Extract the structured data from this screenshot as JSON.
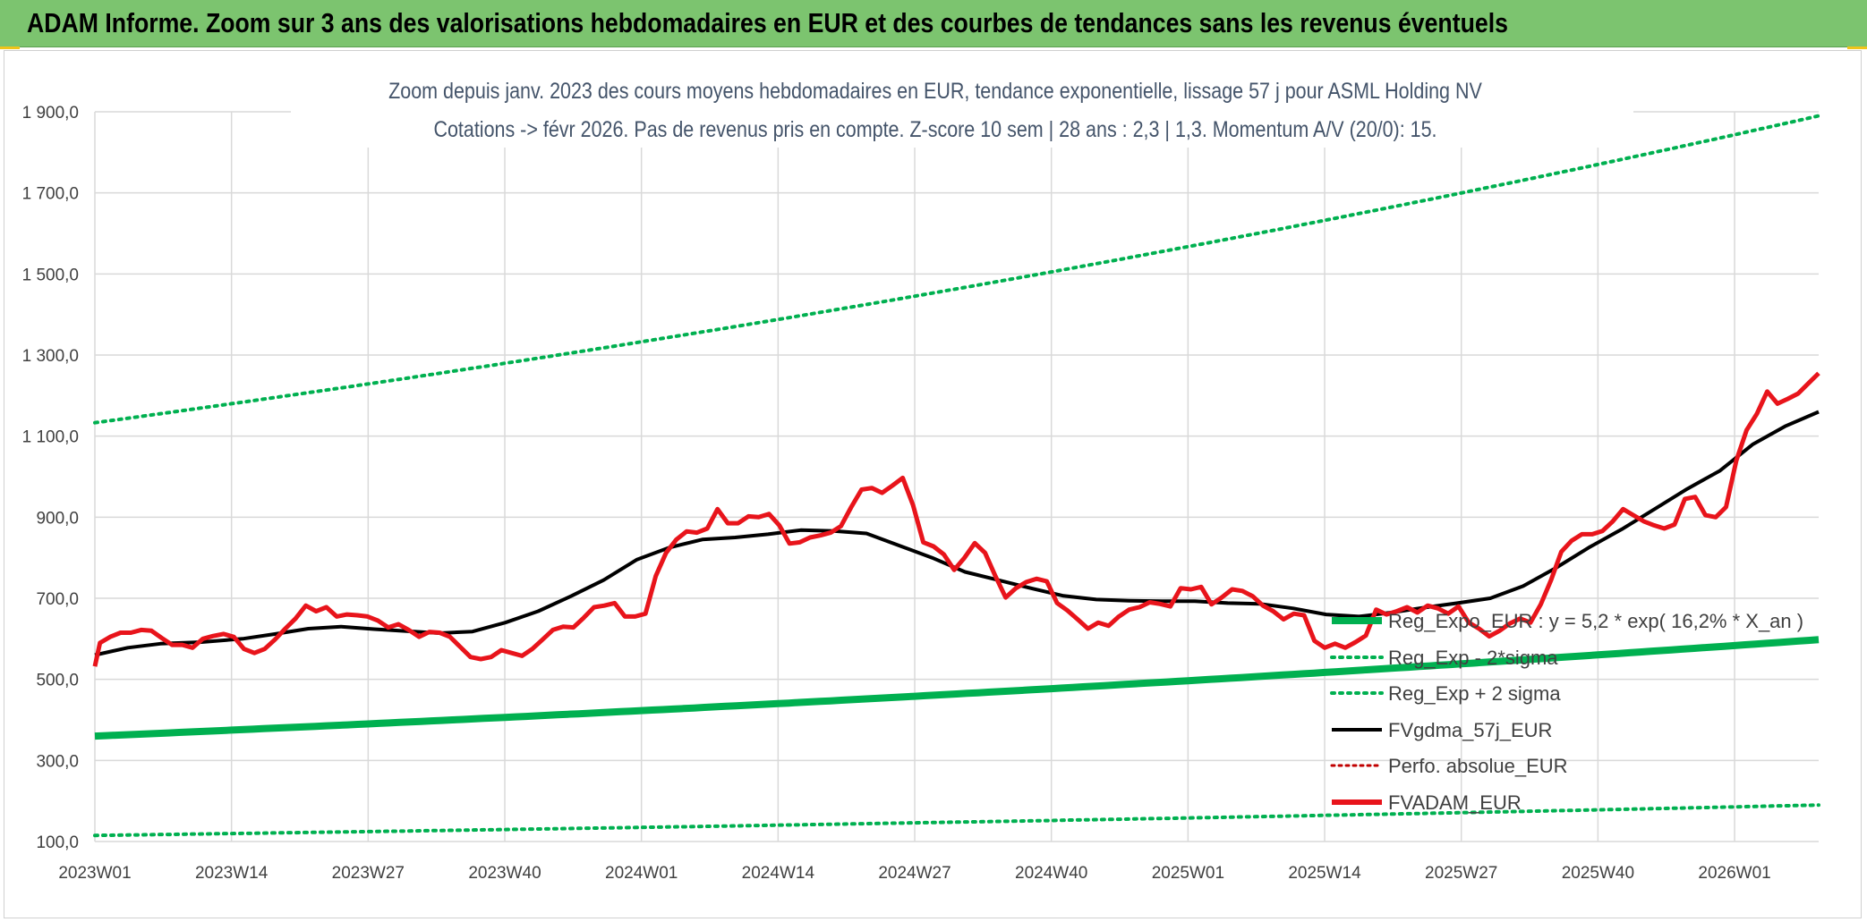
{
  "header": {
    "title": "ADAM Informe. Zoom sur 3 ans des valorisations hebdomadaires en EUR et des courbes de tendances sans les revenus éventuels"
  },
  "colors": {
    "header_bg": "#7cc46f",
    "trend": "#00b050",
    "price": "#e8141b",
    "smooth": "#000000",
    "perf": "#c00000",
    "grid": "#d9d9d9"
  },
  "chart_data": {
    "type": "line",
    "title": "Zoom depuis janv. 2023 des cours moyens hebdomadaires en EUR, tendance exponentielle, lissage 57 j pour ASML Holding NV",
    "subtitle": "Cotations -> févr 2026. Pas de revenus pris en compte. Z-score 10 sem | 28 ans : 2,3 | 1,3. Momentum A/V (20/0): 15.",
    "xlabel": "",
    "ylabel": "",
    "ylim": [
      100,
      1900
    ],
    "yticks": [
      "100,0",
      "300,0",
      "500,0",
      "700,0",
      "900,0",
      "1 100,0",
      "1 300,0",
      "1 500,0",
      "1 700,0",
      "1 900,0"
    ],
    "ytick_values": [
      100,
      300,
      500,
      700,
      900,
      1100,
      1300,
      1500,
      1700,
      1900
    ],
    "xticks": [
      "2023W01",
      "2023W14",
      "2023W27",
      "2023W40",
      "2024W01",
      "2024W14",
      "2024W27",
      "2024W40",
      "2025W01",
      "2025W14",
      "2025W27",
      "2025W40",
      "2026W01"
    ],
    "xtick_index": [
      0,
      13,
      26,
      39,
      52,
      65,
      78,
      91,
      104,
      117,
      130,
      143,
      156
    ],
    "x_count": 165,
    "grid": true,
    "legend_position": "bottom-right",
    "series": [
      {
        "name": "Reg_Expo_EUR : y = 5,2 * exp( 16,2% *  X_an )",
        "style": "thick-solid",
        "color": "#00b050",
        "start": 360,
        "end": 598
      },
      {
        "name": "Reg_Exp - 2*sigma",
        "style": "dotted",
        "color": "#00b050",
        "start": 115,
        "end": 190
      },
      {
        "name": "Reg_Exp + 2 sigma",
        "style": "dotted",
        "color": "#00b050",
        "start": 1133,
        "end": 1890
      },
      {
        "name": "FVgdma_57j_EUR",
        "style": "solid",
        "color": "#000000",
        "points": [
          [
            0,
            560
          ],
          [
            4,
            578
          ],
          [
            8,
            588
          ],
          [
            13,
            592
          ],
          [
            18,
            600
          ],
          [
            22,
            612
          ],
          [
            26,
            625
          ],
          [
            30,
            630
          ],
          [
            34,
            624
          ],
          [
            38,
            619
          ],
          [
            42,
            614
          ],
          [
            46,
            618
          ],
          [
            50,
            640
          ],
          [
            54,
            668
          ],
          [
            58,
            705
          ],
          [
            62,
            745
          ],
          [
            66,
            795
          ],
          [
            70,
            825
          ],
          [
            74,
            845
          ],
          [
            78,
            850
          ],
          [
            82,
            858
          ],
          [
            86,
            868
          ],
          [
            90,
            866
          ],
          [
            94,
            860
          ],
          [
            98,
            830
          ],
          [
            102,
            800
          ],
          [
            106,
            765
          ],
          [
            110,
            745
          ],
          [
            114,
            725
          ],
          [
            118,
            706
          ],
          [
            122,
            697
          ],
          [
            126,
            694
          ],
          [
            130,
            693
          ],
          [
            134,
            693
          ],
          [
            138,
            688
          ],
          [
            142,
            686
          ],
          [
            146,
            675
          ],
          [
            150,
            660
          ],
          [
            154,
            655
          ],
          [
            158,
            665
          ],
          [
            162,
            677
          ],
          [
            166,
            688
          ],
          [
            170,
            700
          ],
          [
            174,
            730
          ],
          [
            178,
            775
          ],
          [
            182,
            825
          ],
          [
            186,
            870
          ],
          [
            190,
            920
          ],
          [
            194,
            970
          ],
          [
            198,
            1015
          ],
          [
            202,
            1080
          ],
          [
            206,
            1125
          ],
          [
            210,
            1160
          ]
        ]
      },
      {
        "name": "Perfo. absolue_EUR",
        "style": "dotted",
        "color": "#c00000"
      },
      {
        "name": "FVADAM_EUR",
        "style": "thick-solid",
        "color": "#e8141b",
        "points": [
          [
            0,
            532
          ],
          [
            1,
            590
          ],
          [
            3,
            605
          ],
          [
            5,
            615
          ],
          [
            7,
            615
          ],
          [
            9,
            622
          ],
          [
            11,
            620
          ],
          [
            13,
            602
          ],
          [
            15,
            585
          ],
          [
            17,
            585
          ],
          [
            19,
            578
          ],
          [
            21,
            600
          ],
          [
            23,
            607
          ],
          [
            25,
            612
          ],
          [
            27,
            605
          ],
          [
            29,
            575
          ],
          [
            31,
            565
          ],
          [
            33,
            575
          ],
          [
            35,
            598
          ],
          [
            37,
            625
          ],
          [
            39,
            650
          ],
          [
            41,
            682
          ],
          [
            43,
            668
          ],
          [
            45,
            678
          ],
          [
            47,
            655
          ],
          [
            49,
            660
          ],
          [
            51,
            658
          ],
          [
            53,
            655
          ],
          [
            55,
            645
          ],
          [
            57,
            628
          ],
          [
            59,
            636
          ],
          [
            61,
            622
          ],
          [
            63,
            605
          ],
          [
            65,
            617
          ],
          [
            67,
            615
          ],
          [
            69,
            605
          ],
          [
            71,
            580
          ],
          [
            73,
            555
          ],
          [
            75,
            550
          ],
          [
            77,
            555
          ],
          [
            79,
            572
          ],
          [
            81,
            565
          ],
          [
            83,
            558
          ],
          [
            85,
            575
          ],
          [
            87,
            598
          ],
          [
            89,
            622
          ],
          [
            91,
            630
          ],
          [
            93,
            628
          ],
          [
            95,
            652
          ],
          [
            97,
            678
          ],
          [
            99,
            682
          ],
          [
            101,
            688
          ],
          [
            103,
            655
          ],
          [
            105,
            655
          ],
          [
            107,
            662
          ],
          [
            109,
            755
          ],
          [
            111,
            812
          ],
          [
            113,
            845
          ],
          [
            115,
            865
          ],
          [
            117,
            862
          ],
          [
            119,
            872
          ],
          [
            121,
            920
          ],
          [
            123,
            885
          ],
          [
            125,
            885
          ],
          [
            127,
            902
          ],
          [
            129,
            900
          ],
          [
            131,
            908
          ],
          [
            133,
            880
          ],
          [
            135,
            835
          ],
          [
            137,
            838
          ],
          [
            139,
            850
          ],
          [
            141,
            855
          ],
          [
            143,
            862
          ],
          [
            145,
            878
          ],
          [
            147,
            925
          ],
          [
            149,
            968
          ],
          [
            151,
            972
          ],
          [
            153,
            960
          ],
          [
            155,
            978
          ],
          [
            157,
            997
          ],
          [
            159,
            930
          ],
          [
            161,
            838
          ],
          [
            163,
            828
          ],
          [
            165,
            808
          ],
          [
            167,
            770
          ],
          [
            169,
            800
          ],
          [
            171,
            836
          ],
          [
            173,
            812
          ],
          [
            175,
            755
          ],
          [
            177,
            702
          ],
          [
            179,
            725
          ],
          [
            181,
            740
          ],
          [
            183,
            748
          ],
          [
            185,
            742
          ],
          [
            187,
            688
          ],
          [
            189,
            670
          ],
          [
            191,
            648
          ],
          [
            193,
            625
          ],
          [
            195,
            640
          ],
          [
            197,
            632
          ],
          [
            199,
            655
          ],
          [
            201,
            672
          ],
          [
            203,
            678
          ],
          [
            205,
            690
          ],
          [
            207,
            686
          ],
          [
            209,
            680
          ],
          [
            211,
            725
          ],
          [
            213,
            722
          ],
          [
            215,
            728
          ],
          [
            217,
            685
          ],
          [
            219,
            702
          ],
          [
            221,
            722
          ],
          [
            223,
            718
          ],
          [
            225,
            705
          ],
          [
            227,
            682
          ],
          [
            229,
            668
          ],
          [
            231,
            648
          ],
          [
            233,
            662
          ],
          [
            235,
            658
          ],
          [
            237,
            595
          ],
          [
            239,
            578
          ],
          [
            241,
            588
          ],
          [
            243,
            578
          ],
          [
            245,
            592
          ],
          [
            247,
            608
          ],
          [
            249,
            672
          ],
          [
            251,
            660
          ],
          [
            253,
            668
          ],
          [
            255,
            678
          ],
          [
            257,
            665
          ],
          [
            259,
            682
          ],
          [
            261,
            675
          ],
          [
            263,
            662
          ],
          [
            265,
            680
          ],
          [
            267,
            640
          ],
          [
            269,
            625
          ],
          [
            271,
            606
          ],
          [
            273,
            620
          ],
          [
            275,
            638
          ],
          [
            277,
            650
          ],
          [
            279,
            640
          ],
          [
            281,
            685
          ],
          [
            283,
            745
          ],
          [
            285,
            815
          ],
          [
            287,
            842
          ],
          [
            289,
            858
          ],
          [
            291,
            858
          ],
          [
            293,
            866
          ],
          [
            295,
            890
          ],
          [
            297,
            920
          ],
          [
            299,
            905
          ],
          [
            301,
            890
          ],
          [
            303,
            880
          ],
          [
            305,
            872
          ],
          [
            307,
            882
          ],
          [
            309,
            945
          ],
          [
            311,
            950
          ],
          [
            313,
            905
          ],
          [
            315,
            900
          ],
          [
            317,
            925
          ],
          [
            319,
            1040
          ],
          [
            321,
            1115
          ],
          [
            323,
            1155
          ],
          [
            325,
            1210
          ],
          [
            327,
            1180
          ],
          [
            329,
            1192
          ],
          [
            331,
            1205
          ],
          [
            333,
            1230
          ],
          [
            335,
            1255
          ]
        ]
      }
    ]
  }
}
